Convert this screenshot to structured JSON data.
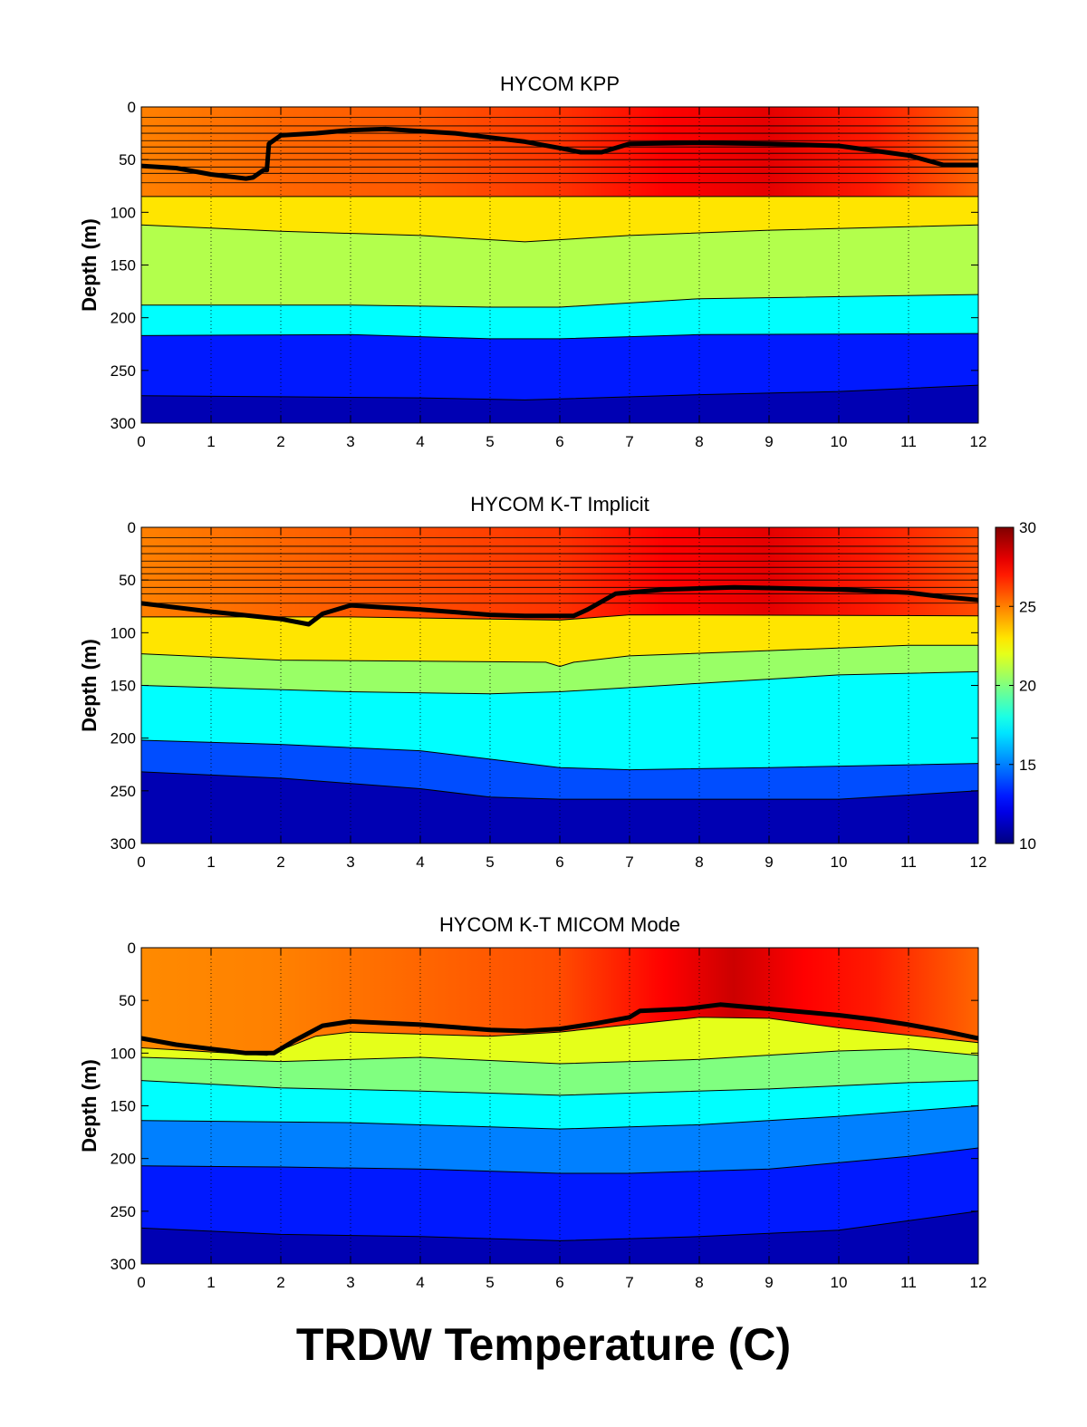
{
  "figure": {
    "title": "TRDW Temperature (C)"
  },
  "colorbar": {
    "min": 10,
    "max": 30,
    "ticks": [
      10,
      15,
      20,
      25,
      30
    ],
    "colormap": "jet"
  },
  "chart_data": [
    {
      "type": "heatmap",
      "title": "HYCOM KPP",
      "xlabel": "",
      "ylabel": "Depth (m)",
      "xlim": [
        0,
        12
      ],
      "ylim": [
        300,
        0
      ],
      "x_ticks": [
        0,
        1,
        2,
        3,
        4,
        5,
        6,
        7,
        8,
        9,
        10,
        11,
        12
      ],
      "y_ticks": [
        0,
        50,
        100,
        150,
        200,
        250,
        300
      ],
      "grid": "vertical dotted",
      "layers": [
        {
          "temp": 26,
          "bottom": [
            [
              0,
              85
            ],
            [
              12,
              85
            ]
          ]
        },
        {
          "temp": 23,
          "bottom": [
            [
              0,
              112
            ],
            [
              2,
              118
            ],
            [
              4,
              122
            ],
            [
              5.5,
              128
            ],
            [
              7,
              122
            ],
            [
              9,
              117
            ],
            [
              12,
              112
            ]
          ]
        },
        {
          "temp": 21,
          "bottom": [
            [
              0,
              188
            ],
            [
              3,
              188
            ],
            [
              5,
              190
            ],
            [
              6,
              190
            ],
            [
              8,
              182
            ],
            [
              12,
              178
            ]
          ]
        },
        {
          "temp": 17.5,
          "bottom": [
            [
              0,
              217
            ],
            [
              3,
              216
            ],
            [
              5,
              220
            ],
            [
              6,
              220
            ],
            [
              8,
              216
            ],
            [
              12,
              215
            ]
          ]
        },
        {
          "temp": 13,
          "bottom": [
            [
              0,
              274
            ],
            [
              2,
              275
            ],
            [
              4,
              276
            ],
            [
              5.5,
              278
            ],
            [
              8,
              273
            ],
            [
              10,
              270
            ],
            [
              12,
              264
            ]
          ]
        },
        {
          "temp": 11,
          "bottom": [
            [
              0,
              300
            ],
            [
              12,
              300
            ]
          ]
        }
      ],
      "surface_temp": [
        [
          0,
          25
        ],
        [
          2,
          25.5
        ],
        [
          4,
          25.8
        ],
        [
          6,
          26.5
        ],
        [
          7.5,
          27.5
        ],
        [
          9,
          28
        ],
        [
          10.5,
          27
        ],
        [
          12,
          25.5
        ]
      ],
      "thin_layer_depths": [
        10,
        18,
        25,
        32,
        38,
        44,
        50,
        57,
        63,
        72
      ],
      "mixed_layer_depth": [
        [
          0,
          56
        ],
        [
          0.5,
          58
        ],
        [
          1,
          64
        ],
        [
          1.5,
          68
        ],
        [
          1.6,
          67
        ],
        [
          1.75,
          60
        ],
        [
          1.8,
          60
        ],
        [
          1.83,
          35
        ],
        [
          2.0,
          27
        ],
        [
          2.5,
          25
        ],
        [
          3.0,
          22
        ],
        [
          3.5,
          21
        ],
        [
          4.5,
          25
        ],
        [
          5.0,
          29
        ],
        [
          5.5,
          33
        ],
        [
          6.0,
          39
        ],
        [
          6.3,
          43
        ],
        [
          6.6,
          43
        ],
        [
          7.0,
          35
        ],
        [
          8.0,
          34
        ],
        [
          9.0,
          35
        ],
        [
          10.0,
          37
        ],
        [
          11.0,
          46
        ],
        [
          11.5,
          55
        ],
        [
          12.0,
          55
        ]
      ]
    },
    {
      "type": "heatmap",
      "title": "HYCOM K-T Implicit",
      "xlabel": "",
      "ylabel": "Depth (m)",
      "xlim": [
        0,
        12
      ],
      "ylim": [
        300,
        0
      ],
      "x_ticks": [
        0,
        1,
        2,
        3,
        4,
        5,
        6,
        7,
        8,
        9,
        10,
        11,
        12
      ],
      "y_ticks": [
        0,
        50,
        100,
        150,
        200,
        250,
        300
      ],
      "grid": "vertical dotted",
      "layers": [
        {
          "temp": 25.5,
          "bottom": [
            [
              0,
              85
            ],
            [
              3,
              85
            ],
            [
              6,
              88
            ],
            [
              7,
              83
            ],
            [
              12,
              84
            ]
          ]
        },
        {
          "temp": 23,
          "bottom": [
            [
              0,
              120
            ],
            [
              2,
              126
            ],
            [
              4,
              127
            ],
            [
              5.8,
              128
            ],
            [
              6,
              132
            ],
            [
              6.2,
              128
            ],
            [
              7,
              122
            ],
            [
              9,
              117
            ],
            [
              11,
              112
            ],
            [
              12,
              112
            ]
          ]
        },
        {
          "temp": 20.5,
          "bottom": [
            [
              0,
              150
            ],
            [
              3,
              156
            ],
            [
              5,
              158
            ],
            [
              6,
              156
            ],
            [
              8,
              148
            ],
            [
              10,
              140
            ],
            [
              12,
              137
            ]
          ]
        },
        {
          "temp": 17.5,
          "bottom": [
            [
              0,
              202
            ],
            [
              2,
              206
            ],
            [
              4,
              212
            ],
            [
              5,
              220
            ],
            [
              6,
              228
            ],
            [
              7,
              230
            ],
            [
              9,
              228
            ],
            [
              12,
              224
            ]
          ]
        },
        {
          "temp": 14,
          "bottom": [
            [
              0,
              232
            ],
            [
              2,
              238
            ],
            [
              4,
              248
            ],
            [
              5,
              256
            ],
            [
              6,
              258
            ],
            [
              8,
              258
            ],
            [
              10,
              258
            ],
            [
              12,
              250
            ]
          ]
        },
        {
          "temp": 11,
          "bottom": [
            [
              0,
              300
            ],
            [
              12,
              300
            ]
          ]
        }
      ],
      "surface_temp": [
        [
          0,
          25
        ],
        [
          2,
          25.5
        ],
        [
          4,
          26
        ],
        [
          6,
          26.5
        ],
        [
          7.5,
          27.5
        ],
        [
          9,
          28
        ],
        [
          10.5,
          27
        ],
        [
          12,
          26
        ]
      ],
      "thin_layer_depths": [
        10,
        18,
        25,
        32,
        38,
        44,
        50,
        57,
        63,
        72
      ],
      "mixed_layer_depth": [
        [
          0,
          72
        ],
        [
          1,
          80
        ],
        [
          2,
          87
        ],
        [
          2.4,
          92
        ],
        [
          2.6,
          82
        ],
        [
          3.0,
          74
        ],
        [
          4.0,
          78
        ],
        [
          5.0,
          83
        ],
        [
          5.5,
          84
        ],
        [
          6.2,
          84
        ],
        [
          6.4,
          78
        ],
        [
          6.8,
          63
        ],
        [
          7.5,
          59
        ],
        [
          8.5,
          57
        ],
        [
          10.0,
          59
        ],
        [
          11.0,
          62
        ],
        [
          11.5,
          66
        ],
        [
          12.0,
          69
        ]
      ]
    },
    {
      "type": "heatmap",
      "title": "HYCOM K-T MICOM Mode",
      "xlabel": "",
      "ylabel": "Depth (m)",
      "xlim": [
        0,
        12
      ],
      "ylim": [
        300,
        0
      ],
      "x_ticks": [
        0,
        1,
        2,
        3,
        4,
        5,
        6,
        7,
        8,
        9,
        10,
        11,
        12
      ],
      "y_ticks": [
        0,
        50,
        100,
        150,
        200,
        250,
        300
      ],
      "grid": "vertical dotted",
      "layers": [
        {
          "temp": 24,
          "bottom": [
            [
              0,
              95
            ],
            [
              1.8,
              102
            ],
            [
              2.5,
              84
            ],
            [
              3,
              80
            ],
            [
              5,
              84
            ],
            [
              6,
              80
            ],
            [
              8,
              66
            ],
            [
              9,
              67
            ],
            [
              10,
              76
            ],
            [
              12,
              90
            ]
          ]
        },
        {
          "temp": 22,
          "bottom": [
            [
              0,
              104
            ],
            [
              2,
              108
            ],
            [
              4,
              104
            ],
            [
              6,
              110
            ],
            [
              8,
              106
            ],
            [
              10,
              98
            ],
            [
              11,
              96
            ],
            [
              12,
              102
            ]
          ]
        },
        {
          "temp": 20,
          "bottom": [
            [
              0,
              126
            ],
            [
              2,
              133
            ],
            [
              4,
              136
            ],
            [
              6,
              140
            ],
            [
              7,
              138
            ],
            [
              9,
              134
            ],
            [
              11,
              128
            ],
            [
              12,
              126
            ]
          ]
        },
        {
          "temp": 17.5,
          "bottom": [
            [
              0,
              164
            ],
            [
              3,
              166
            ],
            [
              5,
              170
            ],
            [
              6,
              172
            ],
            [
              8,
              168
            ],
            [
              10,
              160
            ],
            [
              12,
              150
            ]
          ]
        },
        {
          "temp": 15,
          "bottom": [
            [
              0,
              207
            ],
            [
              2,
              208
            ],
            [
              4,
              210
            ],
            [
              6,
              214
            ],
            [
              7,
              214
            ],
            [
              9,
              210
            ],
            [
              11,
              198
            ],
            [
              12,
              190
            ]
          ]
        },
        {
          "temp": 13,
          "bottom": [
            [
              0,
              266
            ],
            [
              2,
              272
            ],
            [
              4,
              274
            ],
            [
              6,
              278
            ],
            [
              8,
              274
            ],
            [
              10,
              268
            ],
            [
              12,
              250
            ]
          ]
        },
        {
          "temp": 11,
          "bottom": [
            [
              0,
              300
            ],
            [
              12,
              300
            ]
          ]
        }
      ],
      "surface_temp": [
        [
          0,
          24.8
        ],
        [
          2,
          25
        ],
        [
          4,
          25.5
        ],
        [
          6,
          26
        ],
        [
          7.5,
          27.5
        ],
        [
          8.5,
          28.5
        ],
        [
          9.5,
          27.5
        ],
        [
          10.5,
          27
        ],
        [
          12,
          25.5
        ]
      ],
      "thin_layer_depths": [],
      "mixed_layer_depth": [
        [
          0,
          86
        ],
        [
          0.5,
          92
        ],
        [
          1,
          96
        ],
        [
          1.5,
          100
        ],
        [
          1.9,
          100
        ],
        [
          2.2,
          88
        ],
        [
          2.6,
          74
        ],
        [
          3.0,
          70
        ],
        [
          4.0,
          73
        ],
        [
          5.0,
          78
        ],
        [
          5.5,
          79
        ],
        [
          6.0,
          77
        ],
        [
          6.5,
          72
        ],
        [
          7.0,
          66
        ],
        [
          7.15,
          60
        ],
        [
          7.8,
          58
        ],
        [
          8.3,
          54
        ],
        [
          9.0,
          58
        ],
        [
          10.0,
          64
        ],
        [
          10.5,
          68
        ],
        [
          11.0,
          73
        ],
        [
          11.5,
          79
        ],
        [
          12.0,
          86
        ]
      ]
    }
  ]
}
